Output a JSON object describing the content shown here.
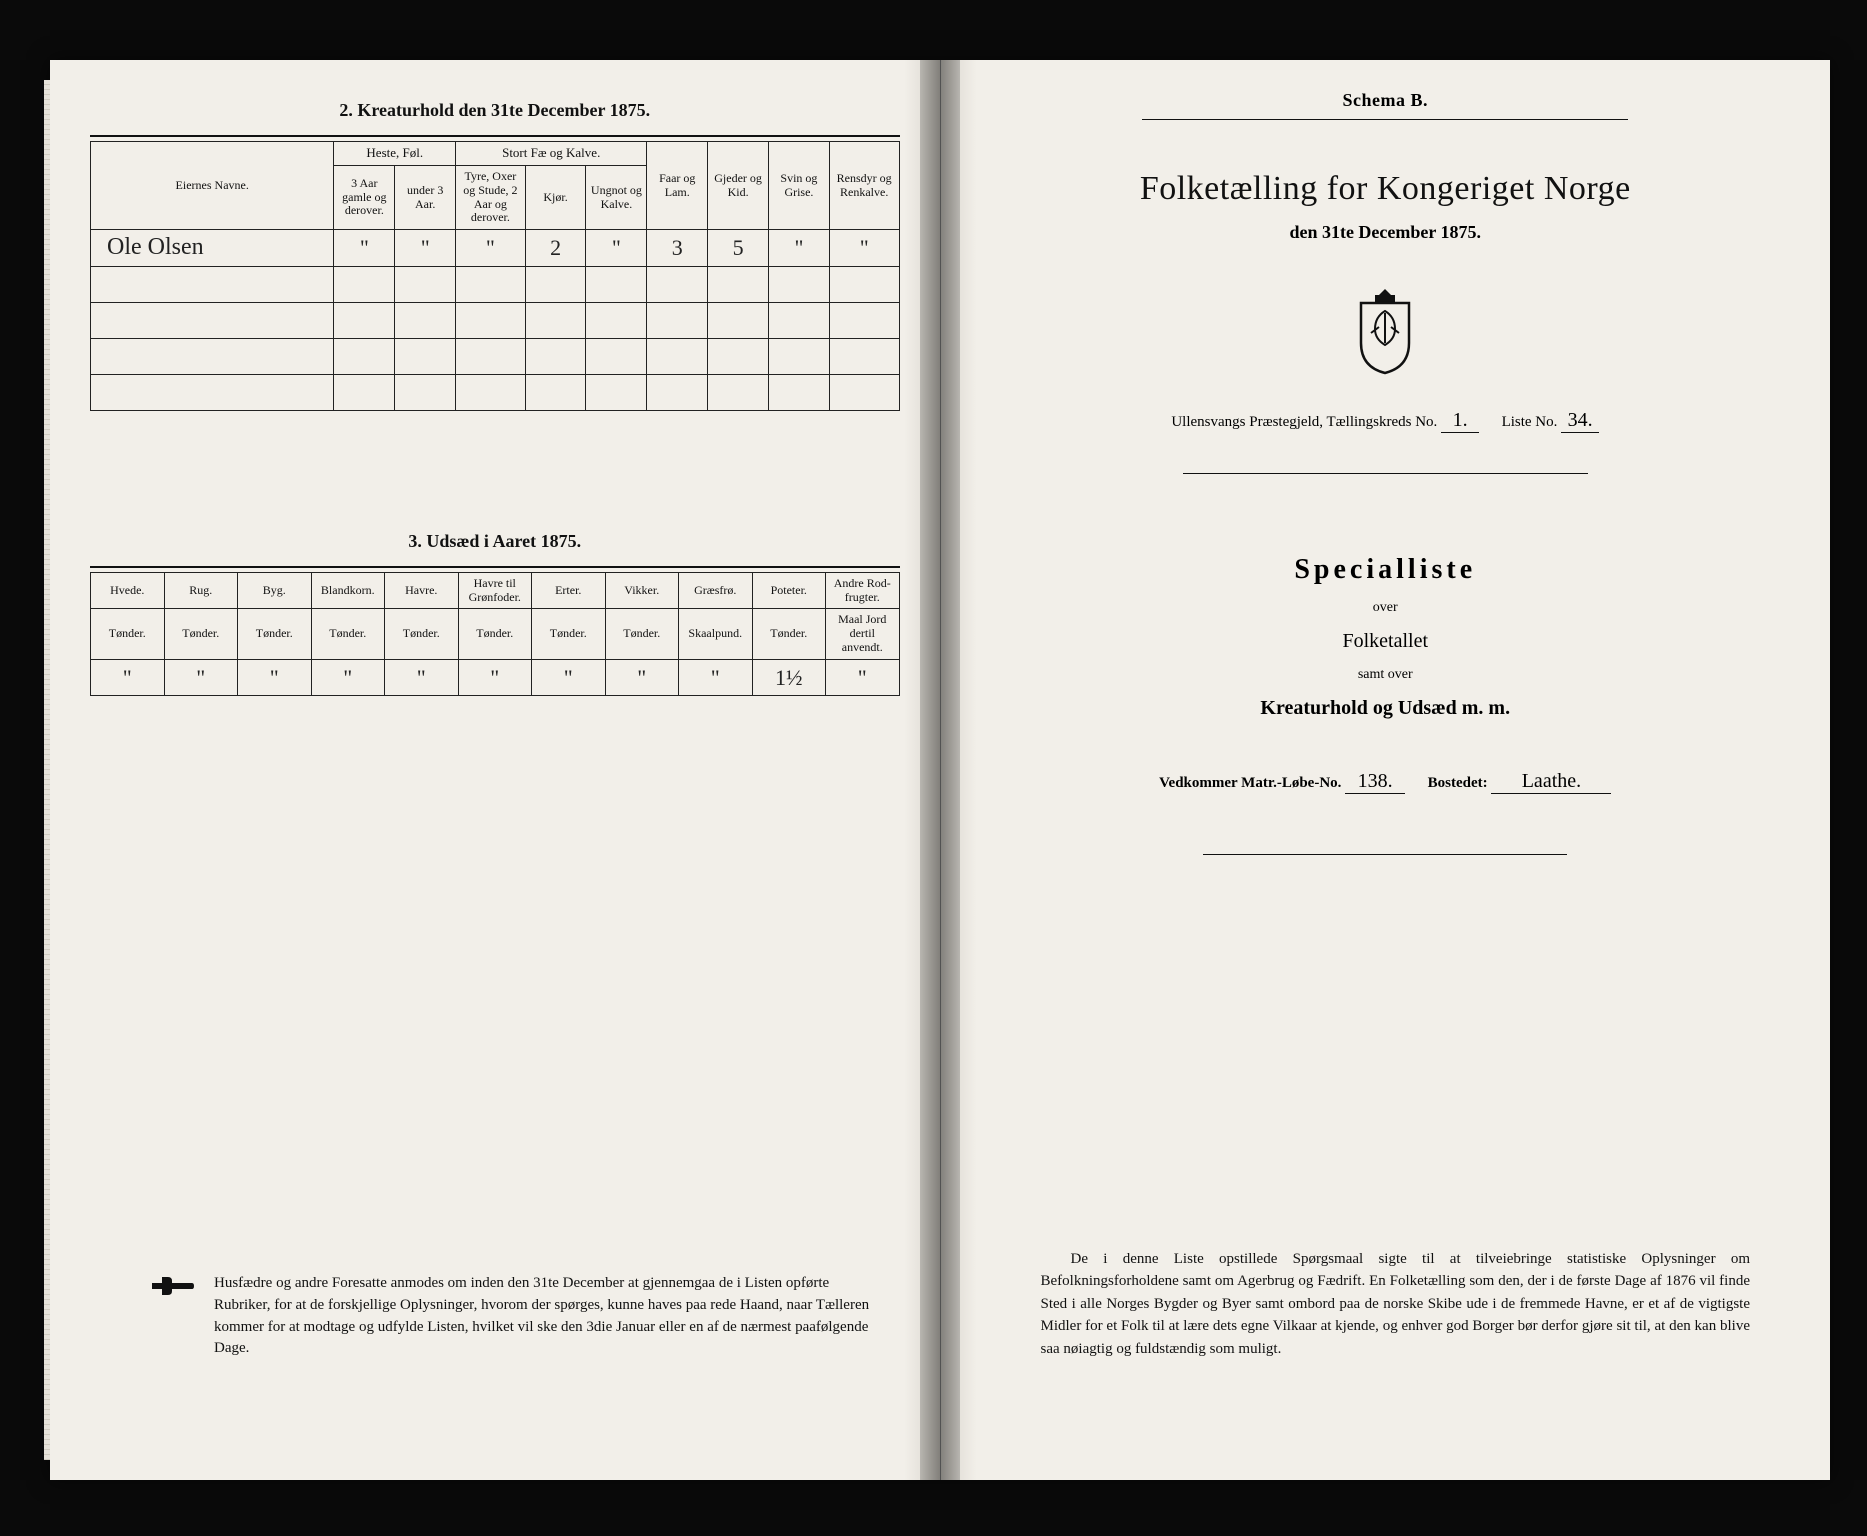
{
  "colors": {
    "paper": "#f2efe9",
    "ink": "#111111",
    "scan_bg": "#0a0a0a",
    "spine_shadow": "rgba(0,0,0,0.35)",
    "rule": "#222222"
  },
  "typography": {
    "body_family": "Georgia, 'Times New Roman', serif",
    "handwriting_family": "'Brush Script MT', cursive",
    "title_fontsize_pt": 26,
    "section_title_fontsize_pt": 14,
    "table_header_fontsize_pt": 9,
    "footnote_fontsize_pt": 11
  },
  "left_page": {
    "section2": {
      "title": "2.  Kreaturhold den 31te December 1875.",
      "col_owner": "Eiernes Navne.",
      "group_heste": "Heste, Føl.",
      "col_heste_a": "3 Aar gamle og derover.",
      "col_heste_b": "under 3 Aar.",
      "group_stort": "Stort Fæ og Kalve.",
      "col_stort_a": "Tyre, Oxer og Stude, 2 Aar og derover.",
      "col_stort_b": "Kjør.",
      "col_stort_c": "Ungnot og Kalve.",
      "col_faar": "Faar og Lam.",
      "col_gjeder": "Gjeder og Kid.",
      "col_svin": "Svin og Grise.",
      "col_rensdyr": "Rensdyr og Renkalve.",
      "rows": [
        {
          "owner": "Ole Olsen",
          "heste_a": "\"",
          "heste_b": "\"",
          "stort_a": "\"",
          "stort_b": "2",
          "stort_c": "\"",
          "faar": "3",
          "gjeder": "5",
          "svin": "\"",
          "rensdyr": "\""
        },
        {
          "owner": "",
          "heste_a": "",
          "heste_b": "",
          "stort_a": "",
          "stort_b": "",
          "stort_c": "",
          "faar": "",
          "gjeder": "",
          "svin": "",
          "rensdyr": ""
        },
        {
          "owner": "",
          "heste_a": "",
          "heste_b": "",
          "stort_a": "",
          "stort_b": "",
          "stort_c": "",
          "faar": "",
          "gjeder": "",
          "svin": "",
          "rensdyr": ""
        },
        {
          "owner": "",
          "heste_a": "",
          "heste_b": "",
          "stort_a": "",
          "stort_b": "",
          "stort_c": "",
          "faar": "",
          "gjeder": "",
          "svin": "",
          "rensdyr": ""
        },
        {
          "owner": "",
          "heste_a": "",
          "heste_b": "",
          "stort_a": "",
          "stort_b": "",
          "stort_c": "",
          "faar": "",
          "gjeder": "",
          "svin": "",
          "rensdyr": ""
        }
      ]
    },
    "section3": {
      "title": "3.  Udsæd i Aaret 1875.",
      "columns": [
        {
          "name": "Hvede.",
          "unit": "Tønder."
        },
        {
          "name": "Rug.",
          "unit": "Tønder."
        },
        {
          "name": "Byg.",
          "unit": "Tønder."
        },
        {
          "name": "Blandkorn.",
          "unit": "Tønder."
        },
        {
          "name": "Havre.",
          "unit": "Tønder."
        },
        {
          "name": "Havre til Grønfoder.",
          "unit": "Tønder."
        },
        {
          "name": "Erter.",
          "unit": "Tønder."
        },
        {
          "name": "Vikker.",
          "unit": "Tønder."
        },
        {
          "name": "Græsfrø.",
          "unit": "Skaalpund."
        },
        {
          "name": "Poteter.",
          "unit": "Tønder."
        },
        {
          "name": "Andre Rod-frugter.",
          "unit": "Maal Jord dertil anvendt."
        }
      ],
      "row": [
        "\"",
        "\"",
        "\"",
        "\"",
        "\"",
        "\"",
        "\"",
        "\"",
        "\"",
        "1½",
        "\""
      ]
    },
    "footnote": "Husfædre og andre Foresatte anmodes om inden den 31te December at gjennemgaa de i Listen opførte Rubriker, for at de forskjellige Oplysninger, hvorom der spørges, kunne haves paa rede Haand, naar Tælleren kommer for at modtage og udfylde Listen, hvilket vil ske den 3die Januar eller en af de nærmest paafølgende Dage."
  },
  "right_page": {
    "schema_label": "Schema B.",
    "title": "Folketælling for Kongeriget Norge",
    "subtitle": "den 31te December 1875.",
    "parish_line_prefix": "Ullensvangs Præstegjeld, Tællingskreds No.",
    "parish_kreds_no": "1.",
    "parish_liste_label": "Liste No.",
    "parish_liste_no": "34.",
    "special_title": "Specialliste",
    "over": "over",
    "folketallet": "Folketallet",
    "samt_over": "samt over",
    "kreaturhold": "Kreaturhold og Udsæd m. m.",
    "vedk_label": "Vedkommer Matr.-Løbe-No.",
    "vedk_no": "138.",
    "bostedet_label": "Bostedet:",
    "bostedet_value": "Laathe.",
    "footnote": "De i denne Liste opstillede Spørgsmaal sigte til at tilveiebringe statistiske Oplysninger om Befolkningsforholdene samt om Agerbrug og Fædrift.  En Folketælling som den, der i de første Dage af 1876 vil finde Sted i alle Norges Bygder og Byer samt ombord paa de norske Skibe ude i de fremmede Havne, er et af de vigtigste Midler for et Folk til at lære dets egne Vilkaar at kjende, og enhver god Borger bør derfor gjøre sit til, at den kan blive saa nøiagtig og fuldstændig som muligt."
  }
}
